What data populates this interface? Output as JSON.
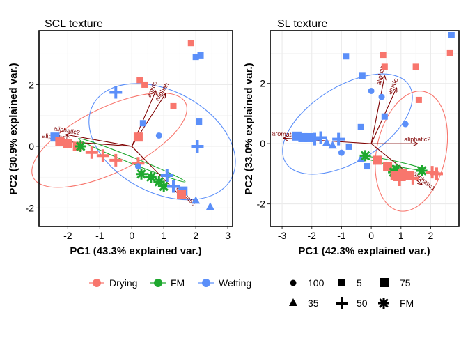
{
  "chart_data": [
    {
      "type": "scatter",
      "title": "SCL texture",
      "xlabel": "PC1 (43.3% explained var.)",
      "ylabel": "PC2 (30.9% explained var.)",
      "xlim": [
        -2.9,
        3.15
      ],
      "ylim": [
        -2.6,
        3.75
      ],
      "xticks": [
        -2,
        -1,
        0,
        1,
        2,
        3
      ],
      "yticks": [
        -2,
        0,
        2
      ],
      "grid": true,
      "points": [
        {
          "x": 1.85,
          "y": 3.35,
          "group": "Drying",
          "shape": "5"
        },
        {
          "x": 2.15,
          "y": 2.95,
          "group": "Wetting",
          "shape": "5"
        },
        {
          "x": 2.0,
          "y": 2.9,
          "group": "Wetting",
          "shape": "5"
        },
        {
          "x": 0.25,
          "y": 2.15,
          "group": "Drying",
          "shape": "5"
        },
        {
          "x": 0.4,
          "y": 2.0,
          "group": "Drying",
          "shape": "5"
        },
        {
          "x": -0.5,
          "y": 1.75,
          "group": "Wetting",
          "shape": "50"
        },
        {
          "x": 1.3,
          "y": 1.3,
          "group": "Drying",
          "shape": "5"
        },
        {
          "x": 2.1,
          "y": 0.8,
          "group": "Wetting",
          "shape": "5"
        },
        {
          "x": 0.35,
          "y": 0.75,
          "group": "Wetting",
          "shape": "5"
        },
        {
          "x": 0.85,
          "y": 0.35,
          "group": "Wetting",
          "shape": "100"
        },
        {
          "x": 0.2,
          "y": 0.3,
          "group": "Drying",
          "shape": "75"
        },
        {
          "x": 2.05,
          "y": 0.0,
          "group": "Wetting",
          "shape": "50"
        },
        {
          "x": -2.4,
          "y": 0.3,
          "group": "Wetting",
          "shape": "75"
        },
        {
          "x": -2.25,
          "y": 0.15,
          "group": "Drying",
          "shape": "75"
        },
        {
          "x": -2.0,
          "y": 0.1,
          "group": "Drying",
          "shape": "75"
        },
        {
          "x": -1.7,
          "y": 0.0,
          "group": "Drying",
          "shape": "75"
        },
        {
          "x": -1.6,
          "y": 0.0,
          "group": "FM",
          "shape": "FM"
        },
        {
          "x": -1.25,
          "y": -0.2,
          "group": "Drying",
          "shape": "50"
        },
        {
          "x": -0.9,
          "y": -0.3,
          "group": "Drying",
          "shape": "50"
        },
        {
          "x": -0.5,
          "y": -0.45,
          "group": "Drying",
          "shape": "50"
        },
        {
          "x": 0.2,
          "y": -0.55,
          "group": "Drying",
          "shape": "50"
        },
        {
          "x": 0.3,
          "y": -0.9,
          "group": "FM",
          "shape": "FM"
        },
        {
          "x": 0.2,
          "y": -0.65,
          "group": "Wetting",
          "shape": "100"
        },
        {
          "x": 0.6,
          "y": -1.0,
          "group": "FM",
          "shape": "FM"
        },
        {
          "x": 0.85,
          "y": -1.15,
          "group": "FM",
          "shape": "FM"
        },
        {
          "x": 1.0,
          "y": -1.3,
          "group": "FM",
          "shape": "FM"
        },
        {
          "x": 1.1,
          "y": -0.95,
          "group": "Wetting",
          "shape": "50"
        },
        {
          "x": 1.3,
          "y": -1.3,
          "group": "Wetting",
          "shape": "50"
        },
        {
          "x": 1.6,
          "y": -1.45,
          "group": "Wetting",
          "shape": "75"
        },
        {
          "x": 1.55,
          "y": -1.55,
          "group": "Drying",
          "shape": "75"
        },
        {
          "x": 2.0,
          "y": -1.75,
          "group": "Wetting",
          "shape": "35"
        },
        {
          "x": 2.45,
          "y": -1.95,
          "group": "Wetting",
          "shape": "35"
        }
      ],
      "ellipses": [
        {
          "group": "Drying",
          "cx": -0.7,
          "cy": 0.2,
          "rx": 2.65,
          "ry": 1.05,
          "angle": 26
        },
        {
          "group": "Wetting",
          "cx": 0.95,
          "cy": 0.15,
          "rx": 2.45,
          "ry": 1.65,
          "angle": -28
        },
        {
          "group": "FM",
          "cx": -0.0,
          "cy": -0.45,
          "rx": 1.8,
          "ry": 0.1,
          "angle": -22
        }
      ],
      "arrows": [
        {
          "label": "amide",
          "x": 0.75,
          "y": 1.8
        },
        {
          "label": "aliphah",
          "x": 1.05,
          "y": 1.7
        },
        {
          "label": "aliphatic2",
          "x": -2.05,
          "y": 0.38
        },
        {
          "label": "aliphatic1",
          "x": -2.4,
          "y": 0.18
        },
        {
          "label": "aromatic",
          "x": 1.6,
          "y": -1.7
        }
      ]
    },
    {
      "type": "scatter",
      "title": "SL texture",
      "xlabel": "PC1 (42.3% explained var.)",
      "ylabel": "PC2 (33.0% explained var.)",
      "xlim": [
        -3.4,
        2.95
      ],
      "ylim": [
        -2.75,
        3.75
      ],
      "xticks": [
        -3,
        -2,
        -1,
        0,
        1,
        2
      ],
      "yticks": [
        -2,
        0,
        2
      ],
      "grid": true,
      "points": [
        {
          "x": 2.7,
          "y": 3.6,
          "group": "Wetting",
          "shape": "5"
        },
        {
          "x": 0.4,
          "y": 2.95,
          "group": "Drying",
          "shape": "5"
        },
        {
          "x": 2.65,
          "y": 3.0,
          "group": "Drying",
          "shape": "5"
        },
        {
          "x": -0.85,
          "y": 2.9,
          "group": "Wetting",
          "shape": "5"
        },
        {
          "x": 0.45,
          "y": 2.55,
          "group": "Drying",
          "shape": "5"
        },
        {
          "x": 1.5,
          "y": 2.55,
          "group": "Drying",
          "shape": "5"
        },
        {
          "x": -0.3,
          "y": 2.25,
          "group": "Wetting",
          "shape": "5"
        },
        {
          "x": 0.0,
          "y": 1.75,
          "group": "Wetting",
          "shape": "100"
        },
        {
          "x": 0.35,
          "y": 1.55,
          "group": "Wetting",
          "shape": "100"
        },
        {
          "x": 1.6,
          "y": 1.45,
          "group": "Drying",
          "shape": "5"
        },
        {
          "x": 0.45,
          "y": 0.9,
          "group": "Wetting",
          "shape": "5"
        },
        {
          "x": 1.15,
          "y": 0.65,
          "group": "Wetting",
          "shape": "100"
        },
        {
          "x": -0.35,
          "y": 0.55,
          "group": "Wetting",
          "shape": "5"
        },
        {
          "x": -2.5,
          "y": 0.25,
          "group": "Wetting",
          "shape": "75"
        },
        {
          "x": -2.3,
          "y": 0.2,
          "group": "Wetting",
          "shape": "75"
        },
        {
          "x": -2.1,
          "y": 0.2,
          "group": "Wetting",
          "shape": "75"
        },
        {
          "x": -1.9,
          "y": 0.15,
          "group": "Wetting",
          "shape": "50"
        },
        {
          "x": -1.7,
          "y": 0.2,
          "group": "Wetting",
          "shape": "50"
        },
        {
          "x": -1.5,
          "y": 0.05,
          "group": "Wetting",
          "shape": "35"
        },
        {
          "x": -1.3,
          "y": -0.05,
          "group": "Wetting",
          "shape": "35"
        },
        {
          "x": -1.1,
          "y": 0.15,
          "group": "Wetting",
          "shape": "50"
        },
        {
          "x": -1.0,
          "y": -0.3,
          "group": "Wetting",
          "shape": "100"
        },
        {
          "x": -0.75,
          "y": -0.1,
          "group": "Wetting",
          "shape": "5"
        },
        {
          "x": -0.35,
          "y": -0.5,
          "group": "Wetting",
          "shape": "35"
        },
        {
          "x": -0.15,
          "y": -0.75,
          "group": "Wetting",
          "shape": "5"
        },
        {
          "x": -0.2,
          "y": -0.4,
          "group": "FM",
          "shape": "FM"
        },
        {
          "x": 0.2,
          "y": -0.55,
          "group": "Drying",
          "shape": "75"
        },
        {
          "x": 0.55,
          "y": -0.75,
          "group": "Drying",
          "shape": "75"
        },
        {
          "x": 0.75,
          "y": -0.95,
          "group": "FM",
          "shape": "FM"
        },
        {
          "x": 0.85,
          "y": -0.85,
          "group": "FM",
          "shape": "FM"
        },
        {
          "x": 1.05,
          "y": -1.0,
          "group": "Drying",
          "shape": "75"
        },
        {
          "x": 1.3,
          "y": -1.05,
          "group": "Drying",
          "shape": "75"
        },
        {
          "x": 1.4,
          "y": -1.15,
          "group": "Drying",
          "shape": "50"
        },
        {
          "x": 1.7,
          "y": -0.9,
          "group": "FM",
          "shape": "FM"
        },
        {
          "x": 2.05,
          "y": -0.95,
          "group": "Drying",
          "shape": "50"
        },
        {
          "x": 2.2,
          "y": -1.0,
          "group": "Drying",
          "shape": "50"
        },
        {
          "x": 0.8,
          "y": -1.05,
          "group": "Drying",
          "shape": "75"
        },
        {
          "x": 0.95,
          "y": -1.2,
          "group": "Drying",
          "shape": "50"
        }
      ],
      "ellipses": [
        {
          "group": "Drying",
          "cx": 1.35,
          "cy": -0.25,
          "rx": 2.05,
          "ry": 1.15,
          "angle": 78
        },
        {
          "group": "Wetting",
          "cx": -0.8,
          "cy": 0.65,
          "rx": 2.45,
          "ry": 1.25,
          "angle": 32
        },
        {
          "group": "FM",
          "cx": 0.75,
          "cy": -0.65,
          "rx": 1.05,
          "ry": 0.08,
          "angle": -12
        }
      ],
      "arrows": [
        {
          "label": "aliphah",
          "x": 0.45,
          "y": 2.25
        },
        {
          "label": "amide",
          "x": 0.85,
          "y": 1.85
        },
        {
          "label": "aliphatic2",
          "x": 1.55,
          "y": 0.0
        },
        {
          "label": "aromatic",
          "x": -2.95,
          "y": 0.18
        },
        {
          "label": "aliphatic1",
          "x": 1.7,
          "y": -1.35
        }
      ]
    }
  ],
  "legend": {
    "placement": "bottom",
    "groups": [
      {
        "label": "Drying",
        "color": "#f8766d"
      },
      {
        "label": "FM",
        "color": "#1ea82e"
      },
      {
        "label": "Wetting",
        "color": "#5b8ff9"
      }
    ],
    "shapes": [
      {
        "label": "100",
        "shape": "circle"
      },
      {
        "label": "5",
        "shape": "square-small"
      },
      {
        "label": "75",
        "shape": "square-large"
      },
      {
        "label": "35",
        "shape": "triangle"
      },
      {
        "label": "50",
        "shape": "plus"
      },
      {
        "label": "FM",
        "shape": "asterisk"
      }
    ]
  },
  "colors": {
    "Drying": "#f8766d",
    "FM": "#1ea82e",
    "Wetting": "#5b8ff9",
    "arrow": "#7f0000",
    "grid": "#ebebeb"
  }
}
